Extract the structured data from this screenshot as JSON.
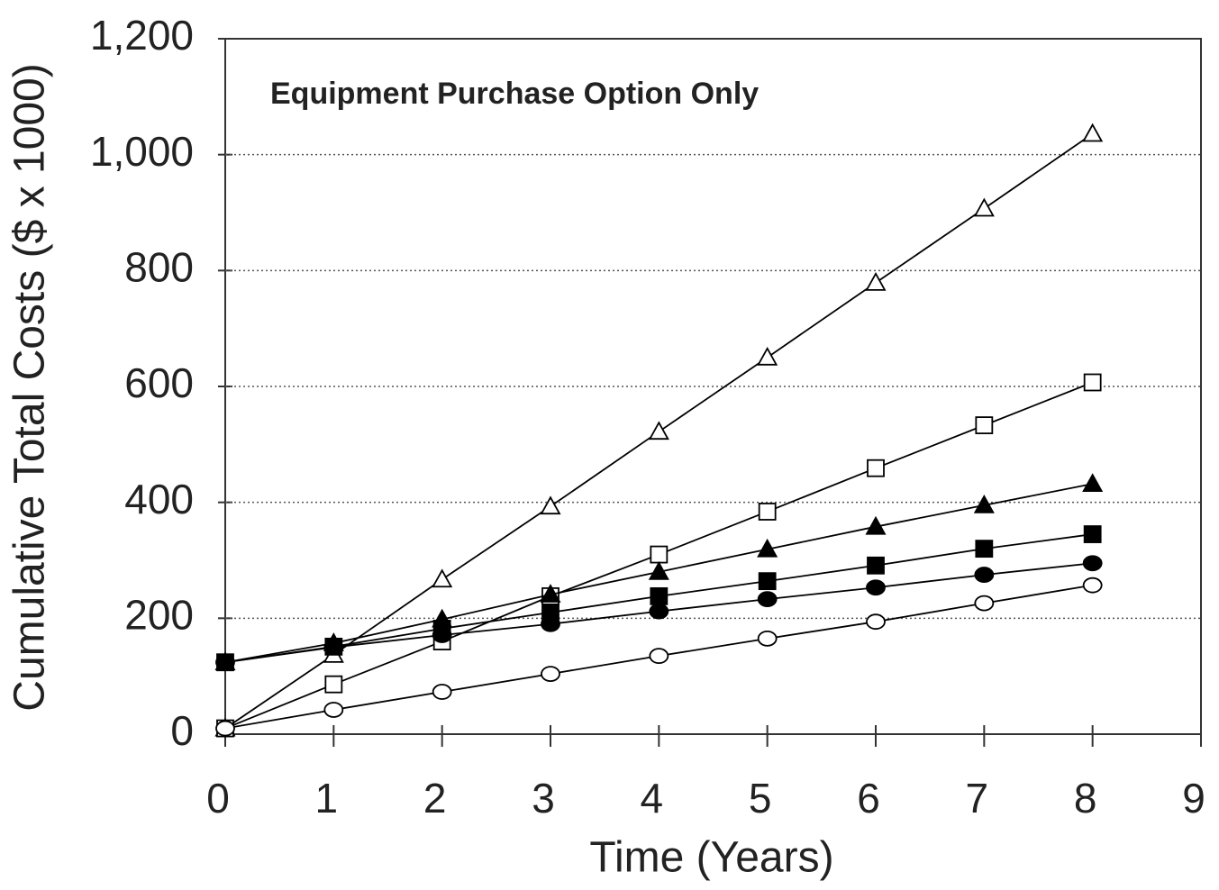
{
  "chart_data": {
    "type": "line",
    "title": "Equipment Purchase Option Only",
    "x_label": "Time (Years)",
    "y_label": "Cumulative Total Costs ($ x 1000)",
    "x": [
      0,
      1,
      2,
      3,
      4,
      5,
      6,
      7,
      8
    ],
    "xlim": [
      0,
      9
    ],
    "xticks": [
      0,
      1,
      2,
      3,
      4,
      5,
      6,
      7,
      8,
      9
    ],
    "ylim": [
      0,
      1200
    ],
    "yticks": [
      0,
      200,
      400,
      600,
      800,
      {
        "value": 1000,
        "label": "1,000"
      },
      {
        "value": 1200,
        "label": "1,200"
      }
    ],
    "grid": true,
    "series": [
      {
        "color": "#000000",
        "marker": "triangle",
        "fill": "open",
        "values": [
          10,
          137,
          267,
          393,
          522,
          650,
          779,
          907,
          1036
        ]
      },
      {
        "color": "#000000",
        "marker": "square",
        "fill": "open",
        "values": [
          10,
          86,
          160,
          238,
          310,
          384,
          459,
          533,
          607
        ]
      },
      {
        "color": "#000000",
        "marker": "triangle",
        "fill": "filled",
        "values": [
          124,
          157,
          198,
          241,
          280,
          319,
          358,
          395,
          432
        ]
      },
      {
        "color": "#000000",
        "marker": "square",
        "fill": "filled",
        "values": [
          124,
          151,
          182,
          210,
          238,
          264,
          291,
          320,
          345
        ]
      },
      {
        "color": "#000000",
        "marker": "circle",
        "fill": "filled",
        "values": [
          124,
          150,
          171,
          190,
          212,
          233,
          253,
          275,
          295
        ]
      },
      {
        "color": "#000000",
        "marker": "circle",
        "fill": "open",
        "values": [
          10,
          42,
          73,
          104,
          135,
          165,
          194,
          226,
          257
        ]
      }
    ]
  }
}
